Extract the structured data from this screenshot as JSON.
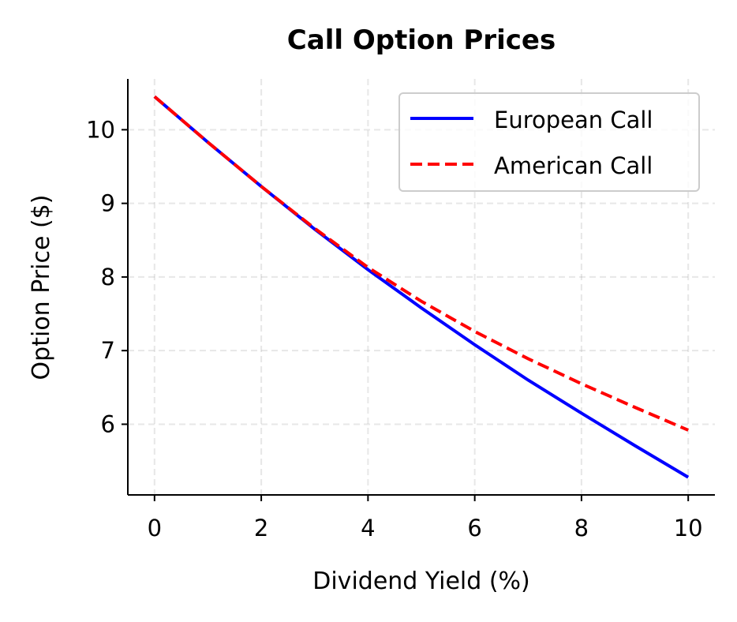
{
  "chart_data": {
    "type": "line",
    "title": "Call Option Prices",
    "xlabel": "Dividend Yield (%)",
    "ylabel": "Option Price ($)",
    "xlim": [
      -0.5,
      10.5
    ],
    "ylim": [
      5.04,
      10.69
    ],
    "xticks": [
      0,
      2,
      4,
      6,
      8,
      10
    ],
    "yticks": [
      6,
      7,
      8,
      9,
      10
    ],
    "grid": true,
    "legend_position": "top-right",
    "x": [
      0,
      1,
      2,
      3,
      4,
      5,
      6,
      7,
      8,
      9,
      10
    ],
    "series": [
      {
        "name": "European Call",
        "color": "#0000ff",
        "style": "solid",
        "values": [
          10.45,
          9.83,
          9.23,
          8.65,
          8.1,
          7.58,
          7.08,
          6.6,
          6.15,
          5.71,
          5.28
        ]
      },
      {
        "name": "American Call",
        "color": "#ff0000",
        "style": "dashed",
        "values": [
          10.45,
          9.83,
          9.23,
          8.66,
          8.13,
          7.67,
          7.26,
          6.89,
          6.55,
          6.23,
          5.92
        ]
      }
    ]
  }
}
